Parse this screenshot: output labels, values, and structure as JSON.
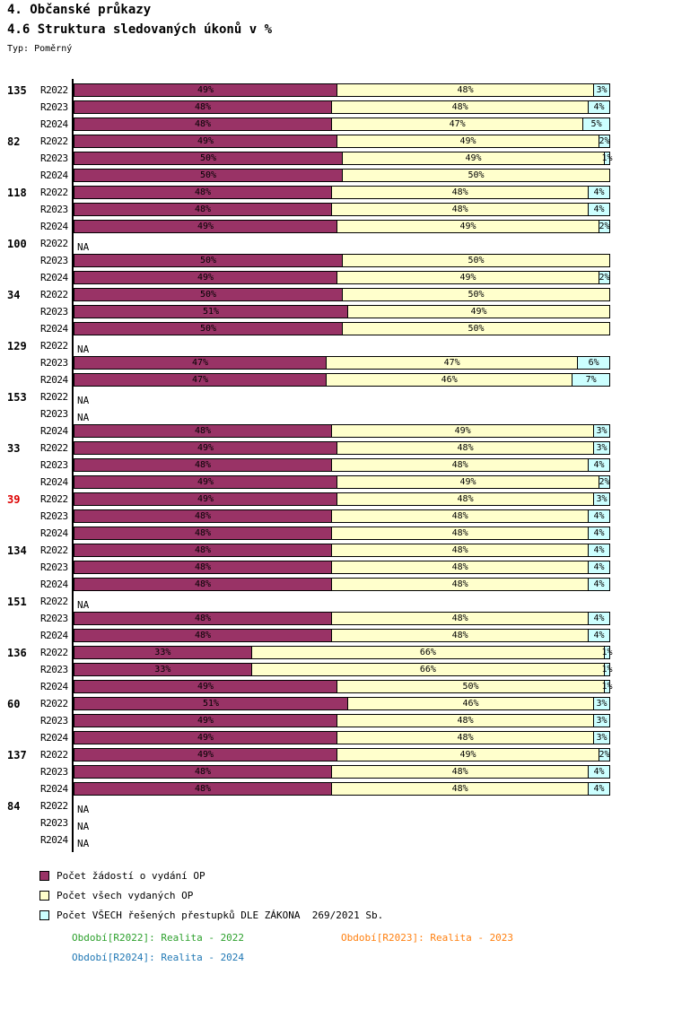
{
  "title": "4. Občanské průkazy",
  "subtitle": "4.6 Struktura sledovaných úkonů v %",
  "type_label": "Typ: Poměrný",
  "na_label": "NA",
  "colors": {
    "applications": "#993366",
    "issued": "#FFFFCC",
    "offenses": "#CCFFFF",
    "highlight_group": "#DD0000",
    "bar_border": "#000000"
  },
  "chart_data": {
    "type": "bar",
    "orientation": "horizontal",
    "stacked": true,
    "unit": "%",
    "xlim": [
      0,
      100
    ],
    "title": "4.6 Struktura sledovaných úkonů v %",
    "note": "Typ: Poměrný",
    "series": [
      {
        "key": "zadosti-o-vydani-op",
        "label": "Počet žádostí o vydání OP",
        "color": "#993366"
      },
      {
        "key": "vsech-vydanych-op",
        "label": "Počet všech vydaných OP",
        "color": "#FFFFCC"
      },
      {
        "key": "resenych-prestupku",
        "label": "Počet VŠECH řešených přestupků DLE ZÁKONA  269/2021 Sb.",
        "color": "#CCFFFF"
      }
    ],
    "years": [
      "R2022",
      "R2023",
      "R2024"
    ],
    "groups": [
      {
        "id": "135",
        "highlight": false,
        "rows": [
          {
            "year": "R2022",
            "na": false,
            "values": [
              49,
              48,
              3
            ]
          },
          {
            "year": "R2023",
            "na": false,
            "values": [
              48,
              48,
              4
            ]
          },
          {
            "year": "R2024",
            "na": false,
            "values": [
              48,
              47,
              5
            ]
          }
        ]
      },
      {
        "id": "82",
        "highlight": false,
        "rows": [
          {
            "year": "R2022",
            "na": false,
            "values": [
              49,
              49,
              2
            ]
          },
          {
            "year": "R2023",
            "na": false,
            "values": [
              50,
              49,
              1
            ]
          },
          {
            "year": "R2024",
            "na": false,
            "values": [
              50,
              50,
              0
            ]
          }
        ]
      },
      {
        "id": "118",
        "highlight": false,
        "rows": [
          {
            "year": "R2022",
            "na": false,
            "values": [
              48,
              48,
              4
            ]
          },
          {
            "year": "R2023",
            "na": false,
            "values": [
              48,
              48,
              4
            ]
          },
          {
            "year": "R2024",
            "na": false,
            "values": [
              49,
              49,
              2
            ]
          }
        ]
      },
      {
        "id": "100",
        "highlight": false,
        "rows": [
          {
            "year": "R2022",
            "na": true,
            "values": null
          },
          {
            "year": "R2023",
            "na": false,
            "values": [
              50,
              50,
              0
            ]
          },
          {
            "year": "R2024",
            "na": false,
            "values": [
              49,
              49,
              2
            ]
          }
        ]
      },
      {
        "id": "34",
        "highlight": false,
        "rows": [
          {
            "year": "R2022",
            "na": false,
            "values": [
              50,
              50,
              0
            ]
          },
          {
            "year": "R2023",
            "na": false,
            "values": [
              51,
              49,
              0
            ]
          },
          {
            "year": "R2024",
            "na": false,
            "values": [
              50,
              50,
              0
            ]
          }
        ]
      },
      {
        "id": "129",
        "highlight": false,
        "rows": [
          {
            "year": "R2022",
            "na": true,
            "values": null
          },
          {
            "year": "R2023",
            "na": false,
            "values": [
              47,
              47,
              6
            ]
          },
          {
            "year": "R2024",
            "na": false,
            "values": [
              47,
              46,
              7
            ]
          }
        ]
      },
      {
        "id": "153",
        "highlight": false,
        "rows": [
          {
            "year": "R2022",
            "na": true,
            "values": null
          },
          {
            "year": "R2023",
            "na": true,
            "values": null
          },
          {
            "year": "R2024",
            "na": false,
            "values": [
              48,
              49,
              3
            ]
          }
        ]
      },
      {
        "id": "33",
        "highlight": false,
        "rows": [
          {
            "year": "R2022",
            "na": false,
            "values": [
              49,
              48,
              3
            ]
          },
          {
            "year": "R2023",
            "na": false,
            "values": [
              48,
              48,
              4
            ]
          },
          {
            "year": "R2024",
            "na": false,
            "values": [
              49,
              49,
              2
            ]
          }
        ]
      },
      {
        "id": "39",
        "highlight": true,
        "rows": [
          {
            "year": "R2022",
            "na": false,
            "values": [
              49,
              48,
              3
            ]
          },
          {
            "year": "R2023",
            "na": false,
            "values": [
              48,
              48,
              4
            ]
          },
          {
            "year": "R2024",
            "na": false,
            "values": [
              48,
              48,
              4
            ]
          }
        ]
      },
      {
        "id": "134",
        "highlight": false,
        "rows": [
          {
            "year": "R2022",
            "na": false,
            "values": [
              48,
              48,
              4
            ]
          },
          {
            "year": "R2023",
            "na": false,
            "values": [
              48,
              48,
              4
            ]
          },
          {
            "year": "R2024",
            "na": false,
            "values": [
              48,
              48,
              4
            ]
          }
        ]
      },
      {
        "id": "151",
        "highlight": false,
        "rows": [
          {
            "year": "R2022",
            "na": true,
            "values": null
          },
          {
            "year": "R2023",
            "na": false,
            "values": [
              48,
              48,
              4
            ]
          },
          {
            "year": "R2024",
            "na": false,
            "values": [
              48,
              48,
              4
            ]
          }
        ]
      },
      {
        "id": "136",
        "highlight": false,
        "rows": [
          {
            "year": "R2022",
            "na": false,
            "values": [
              33,
              66,
              1
            ]
          },
          {
            "year": "R2023",
            "na": false,
            "values": [
              33,
              66,
              1
            ]
          },
          {
            "year": "R2024",
            "na": false,
            "values": [
              49,
              50,
              1
            ]
          }
        ]
      },
      {
        "id": "60",
        "highlight": false,
        "rows": [
          {
            "year": "R2022",
            "na": false,
            "values": [
              51,
              46,
              3
            ]
          },
          {
            "year": "R2023",
            "na": false,
            "values": [
              49,
              48,
              3
            ]
          },
          {
            "year": "R2024",
            "na": false,
            "values": [
              49,
              48,
              3
            ]
          }
        ]
      },
      {
        "id": "137",
        "highlight": false,
        "rows": [
          {
            "year": "R2022",
            "na": false,
            "values": [
              49,
              49,
              2
            ]
          },
          {
            "year": "R2023",
            "na": false,
            "values": [
              48,
              48,
              4
            ]
          },
          {
            "year": "R2024",
            "na": false,
            "values": [
              48,
              48,
              4
            ]
          }
        ]
      },
      {
        "id": "84",
        "highlight": false,
        "rows": [
          {
            "year": "R2022",
            "na": true,
            "values": null
          },
          {
            "year": "R2023",
            "na": true,
            "values": null
          },
          {
            "year": "R2024",
            "na": true,
            "values": null
          }
        ]
      }
    ]
  },
  "footer": {
    "lines": [
      [
        {
          "label": "Období[R2022]: Realita - 2022",
          "color": "#2CA02C"
        },
        {
          "label": "Období[R2023]: Realita - 2023",
          "color": "#FF7F0E"
        }
      ],
      [
        {
          "label": "Období[R2024]: Realita - 2024",
          "color": "#1F77B4"
        }
      ]
    ]
  }
}
